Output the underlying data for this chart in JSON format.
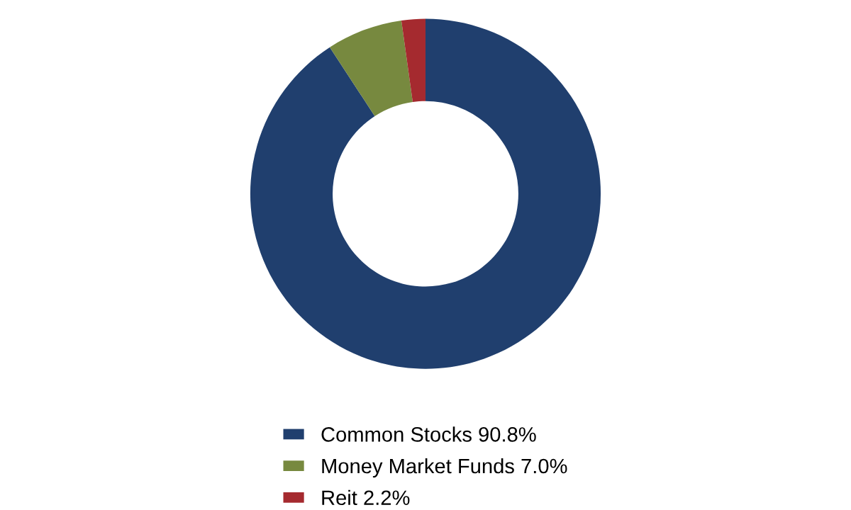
{
  "chart_data": {
    "type": "donut",
    "categories": [
      "Common Stocks",
      "Money Market Funds",
      "Reit"
    ],
    "values": [
      90.8,
      7.0,
      2.2
    ],
    "value_labels": [
      "90.8%",
      "7.0%",
      "2.2%"
    ],
    "colors": [
      "#203f6e",
      "#77893f",
      "#a52a2f"
    ],
    "legend": "bottom"
  }
}
